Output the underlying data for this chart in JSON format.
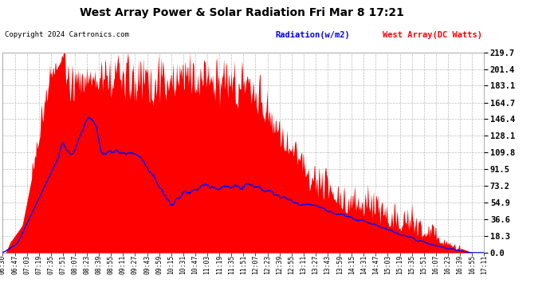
{
  "title": "West Array Power & Solar Radiation Fri Mar 8 17:21",
  "copyright": "Copyright 2024 Cartronics.com",
  "legend_radiation": "Radiation(w/m2)",
  "legend_west": "West Array(DC Watts)",
  "ymin": 0.0,
  "ymax": 219.7,
  "yticks": [
    0.0,
    18.3,
    36.6,
    54.9,
    73.2,
    91.5,
    109.8,
    128.1,
    146.4,
    164.7,
    183.1,
    201.4,
    219.7
  ],
  "plot_bg_color": "#ffffff",
  "fig_bg_color": "#ffffff",
  "grid_color": "#aaaaaa",
  "red_color": "#ff0000",
  "blue_color": "#0000ff",
  "xtick_labels": [
    "06:30",
    "06:47",
    "07:03",
    "07:19",
    "07:35",
    "07:51",
    "08:07",
    "08:23",
    "08:39",
    "08:55",
    "09:11",
    "09:27",
    "09:43",
    "09:59",
    "10:15",
    "10:31",
    "10:47",
    "11:03",
    "11:19",
    "11:35",
    "11:51",
    "12:07",
    "12:23",
    "12:39",
    "12:55",
    "13:11",
    "13:27",
    "13:43",
    "13:59",
    "14:15",
    "14:31",
    "14:47",
    "15:03",
    "15:19",
    "15:35",
    "15:51",
    "16:07",
    "16:23",
    "16:39",
    "16:55",
    "17:11"
  ]
}
